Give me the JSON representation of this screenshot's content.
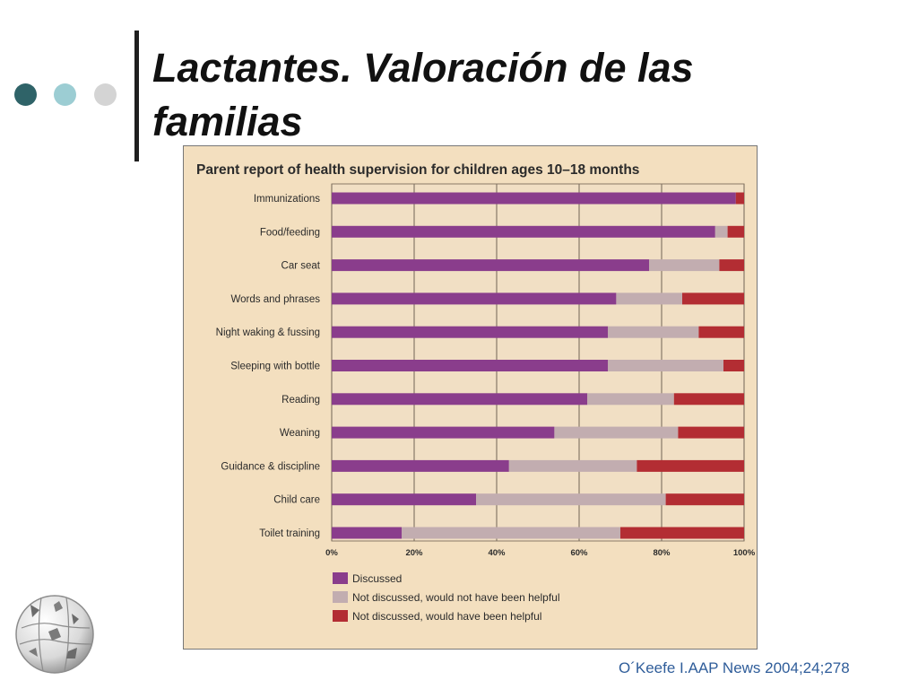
{
  "slide": {
    "title": "Lactantes. Valoración de las familias",
    "citation": "O´Keefe I.AAP News 2004;24;278",
    "decor_dots": [
      "#2f6368",
      "#9ccdd3",
      "#d4d4d4"
    ],
    "logo_icon": "wikipedia-puzzle-globe-icon"
  },
  "chart_data": {
    "type": "bar",
    "stacked": true,
    "orientation": "horizontal",
    "title": "Parent report of health supervision for children ages 10–18 months",
    "categories": [
      "Immunizations",
      "Food/feeding",
      "Car seat",
      "Words and phrases",
      "Night waking & fussing",
      "Sleeping with bottle",
      "Reading",
      "Weaning",
      "Guidance & discipline",
      "Child care",
      "Toilet training"
    ],
    "series": [
      {
        "name": "Discussed",
        "color": "#8a3d8c",
        "values": [
          98,
          93,
          77,
          69,
          67,
          67,
          62,
          54,
          43,
          35,
          17
        ]
      },
      {
        "name": "Not discussed, would not have been helpful",
        "color": "#c2adb0",
        "values": [
          0,
          3,
          17,
          16,
          22,
          28,
          21,
          30,
          31,
          46,
          53
        ]
      },
      {
        "name": "Not discussed, would have been helpful",
        "color": "#b32d33",
        "values": [
          2,
          4,
          6,
          15,
          11,
          5,
          17,
          16,
          26,
          19,
          30
        ]
      }
    ],
    "x_ticks": [
      "0%",
      "20%",
      "40%",
      "60%",
      "80%",
      "100%"
    ],
    "xlim": [
      0,
      100
    ],
    "grid": true,
    "legend_position": "bottom-left"
  }
}
